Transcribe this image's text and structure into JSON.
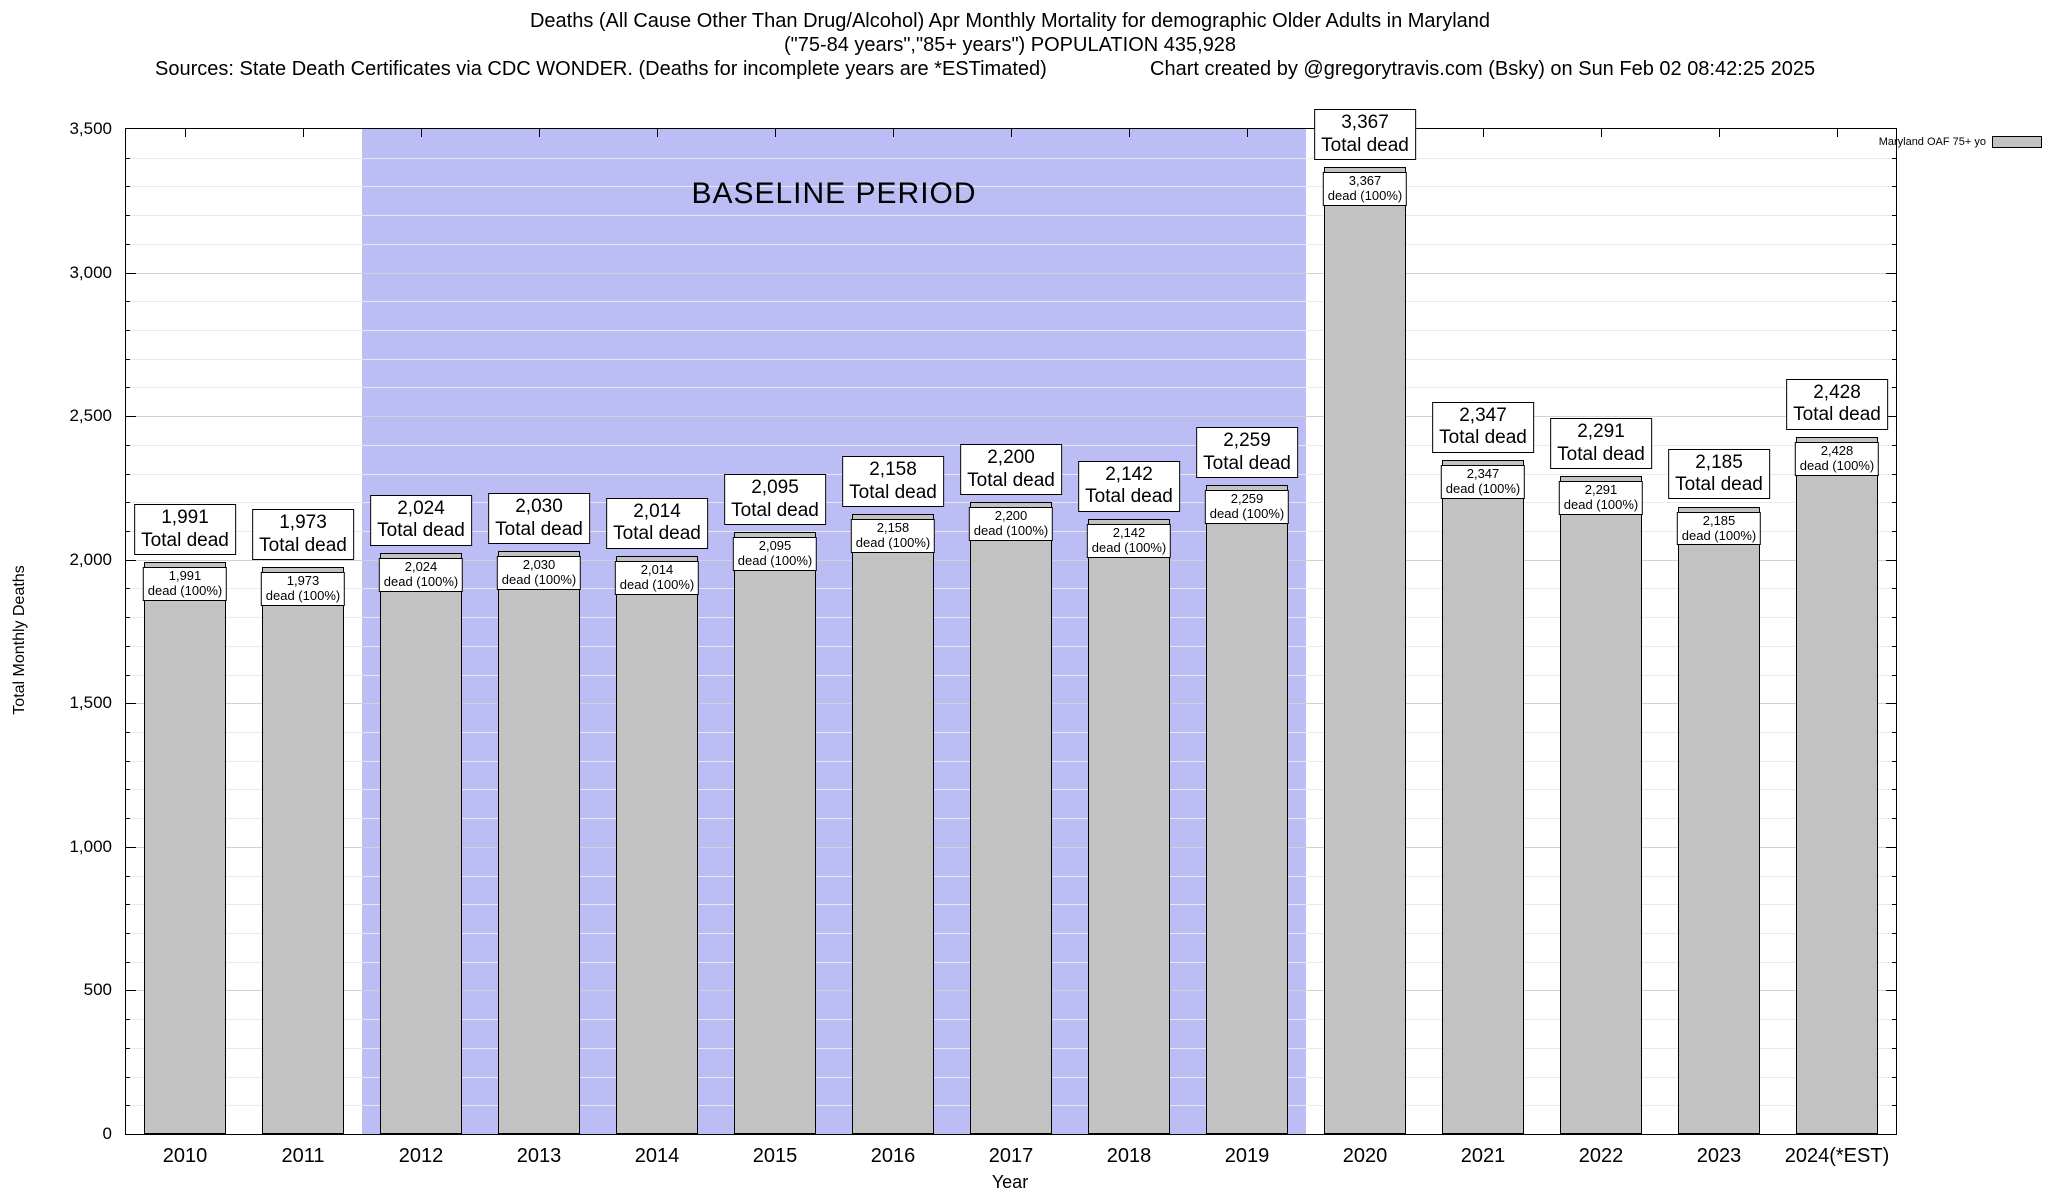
{
  "header": {
    "title_line1": "Deaths (All Cause Other Than Drug/Alcohol) Apr Monthly Mortality for demographic Older Adults in Maryland",
    "title_line2": "(\"75-84 years\",\"85+ years\") POPULATION 435,928",
    "sources": "Sources: State Death Certificates via CDC WONDER. (Deaths for incomplete years are *ESTimated)",
    "credit": "Chart created by @gregorytravis.com (Bsky) on Sun Feb 02 08:42:25 2025"
  },
  "chart_data": {
    "type": "bar",
    "title": "Deaths (All Cause Other Than Drug/Alcohol) Apr Monthly Mortality for demographic Older Adults in Maryland",
    "xlabel": "Year",
    "ylabel": "Total Monthly Deaths",
    "ylim": [
      0,
      3500
    ],
    "ytick_interval": 500,
    "minor_grid_interval": 100,
    "grid": true,
    "ytick_labels": [
      "0",
      "500",
      "1,000",
      "1,500",
      "2,000",
      "2,500",
      "3,000",
      "3,500"
    ],
    "categories": [
      "2010",
      "2011",
      "2012",
      "2013",
      "2014",
      "2015",
      "2016",
      "2017",
      "2018",
      "2019",
      "2020",
      "2021",
      "2022",
      "2023",
      "2024(*EST)"
    ],
    "values": [
      1991,
      1973,
      2024,
      2030,
      2014,
      2095,
      2158,
      2200,
      2142,
      2259,
      3367,
      2347,
      2291,
      2185,
      2428
    ],
    "values_formatted": [
      "1,991",
      "1,973",
      "2,024",
      "2,030",
      "2,014",
      "2,095",
      "2,158",
      "2,200",
      "2,142",
      "2,259",
      "3,367",
      "2,347",
      "2,291",
      "2,185",
      "2,428"
    ],
    "bar_top_label_suffix": "Total dead",
    "bar_inner_label_suffix": "dead (100%)",
    "legend": {
      "label": "Maryland OAF 75+ yo",
      "position": "top-right"
    },
    "baseline_band": {
      "label": "BASELINE PERIOD",
      "start_category": "2012",
      "end_category": "2019",
      "start_index": 2,
      "end_index": 9,
      "color": "#bdbdf6"
    },
    "colors": {
      "bar_fill": "#c2c2c2",
      "bar_border": "#000000",
      "band": "#bdbdf6",
      "grid_major": "#d2d2d2",
      "grid_minor": "#e9e9e9"
    }
  }
}
